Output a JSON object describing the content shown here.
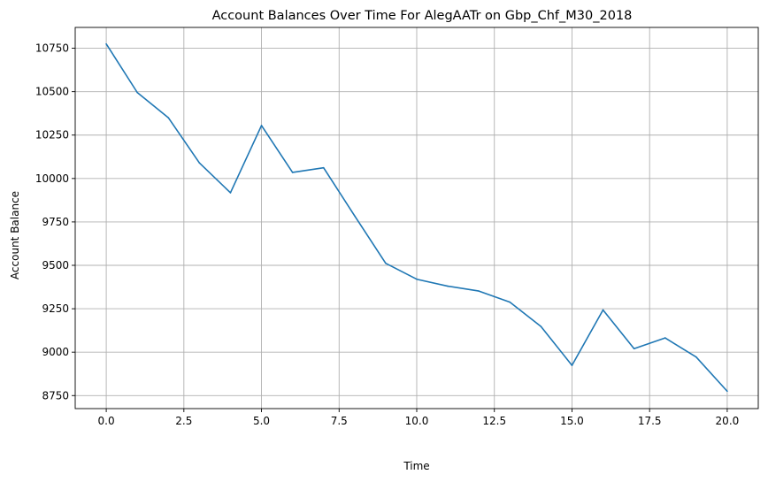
{
  "chart_data": {
    "type": "line",
    "title": "Account Balances Over Time For AlegAATr on Gbp_Chf_M30_2018",
    "xlabel": "Time",
    "ylabel": "Account Balance",
    "xlim": [
      -1.0,
      21.0
    ],
    "ylim": [
      8675,
      10870
    ],
    "grid": true,
    "x_ticks": [
      0.0,
      2.5,
      5.0,
      7.5,
      10.0,
      12.5,
      15.0,
      17.5,
      20.0
    ],
    "x_tick_labels": [
      "0.0",
      "2.5",
      "5.0",
      "7.5",
      "10.0",
      "12.5",
      "15.0",
      "17.5",
      "20.0"
    ],
    "y_ticks": [
      8750,
      9000,
      9250,
      9500,
      9750,
      10000,
      10250,
      10500,
      10750
    ],
    "y_tick_labels": [
      "8750",
      "9000",
      "9250",
      "9500",
      "9750",
      "10000",
      "10250",
      "10500",
      "10750"
    ],
    "line_color": "#1f77b4",
    "series": [
      {
        "x": [
          0,
          1,
          2,
          3,
          4,
          5,
          6,
          7,
          8,
          9,
          10,
          11,
          12,
          13,
          14,
          15,
          16,
          17,
          18,
          19,
          20
        ],
        "values": [
          10775,
          10495,
          10350,
          10090,
          9918,
          10305,
          10035,
          10062,
          9785,
          9512,
          9420,
          9380,
          9352,
          9288,
          9148,
          8924,
          9243,
          9020,
          9082,
          8972,
          8775
        ]
      }
    ]
  }
}
